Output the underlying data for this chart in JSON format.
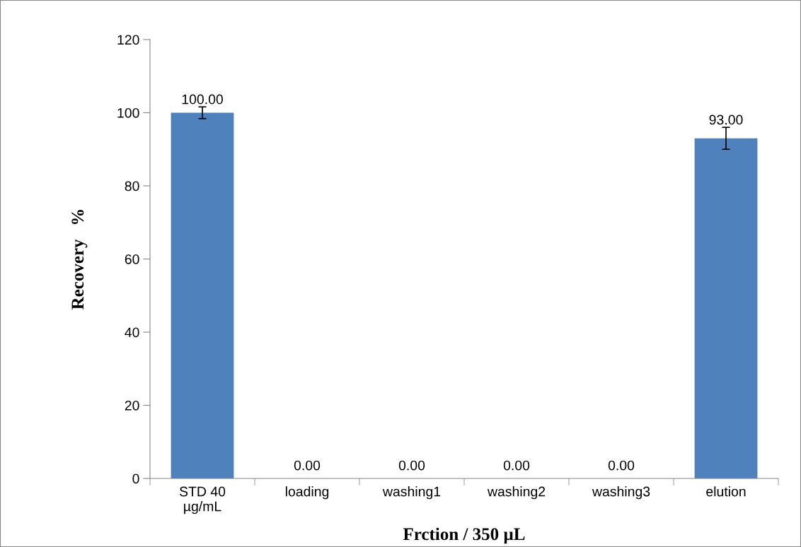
{
  "chart_data": {
    "type": "bar",
    "xlabel": "Frction / 350 µL",
    "ylabel": "Recovery   %",
    "categories": [
      "STD 40\nµg/mL",
      "loading",
      "washing1",
      "washing2",
      "washing3",
      "elution"
    ],
    "values": [
      100,
      0,
      0,
      0,
      0,
      93
    ],
    "errors": [
      1.6,
      null,
      null,
      null,
      null,
      3
    ],
    "value_labels": [
      "100.00",
      "0.00",
      "0.00",
      "0.00",
      "0.00",
      "93.00"
    ],
    "color": "#4f81bd",
    "ylim": [
      0,
      120
    ],
    "yticks": [
      0,
      20,
      40,
      60,
      80,
      100,
      120
    ],
    "grid": false,
    "legend": false
  }
}
